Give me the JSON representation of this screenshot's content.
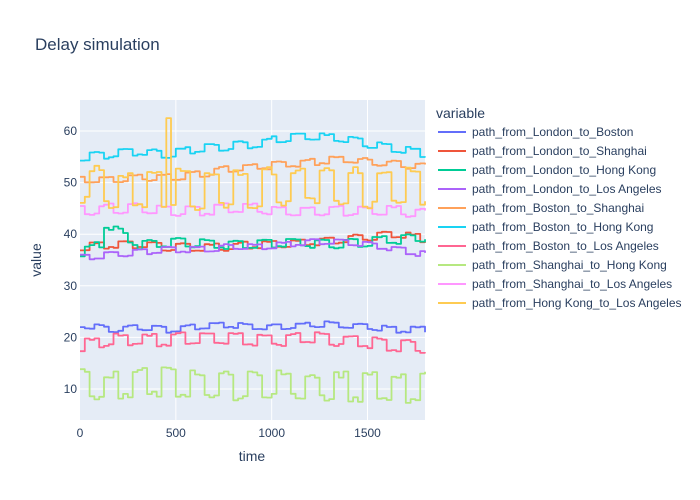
{
  "chart_data": {
    "type": "line",
    "title": "Delay simulation",
    "xlabel": "time",
    "ylabel": "value",
    "xlim": [
      0,
      1800
    ],
    "ylim": [
      4,
      66
    ],
    "x_ticks": [
      0,
      500,
      1000,
      1500
    ],
    "y_ticks": [
      10,
      20,
      30,
      40,
      50,
      60
    ],
    "legend_title": "variable",
    "legend_position": "right",
    "plot_background": "#e5ecf6",
    "grid": true,
    "series": [
      {
        "name": "path_from_London_to_Boston",
        "color": "#636efa",
        "x": [
          0,
          150,
          300,
          450,
          600,
          750,
          900,
          1050,
          1200,
          1350,
          1500,
          1650,
          1800
        ],
        "y": [
          22.5,
          21.5,
          22.0,
          21.5,
          22.0,
          22.5,
          22.0,
          22.0,
          22.5,
          22.5,
          22.0,
          21.5,
          21.5
        ],
        "band": 1.2
      },
      {
        "name": "path_from_London_to_Shanghai",
        "color": "#ef553b",
        "x": [
          0,
          150,
          300,
          450,
          600,
          750,
          900,
          1050,
          1200,
          1350,
          1500,
          1650,
          1800
        ],
        "y": [
          37.5,
          38.0,
          38.0,
          37.5,
          37.5,
          37.5,
          38.0,
          38.0,
          38.5,
          39.0,
          39.5,
          40.0,
          39.0
        ],
        "band": 1.5
      },
      {
        "name": "path_from_London_to_Hong Kong",
        "color": "#00cc96",
        "x": [
          0,
          100,
          120,
          300,
          500,
          700,
          900,
          1100,
          1300,
          1500,
          1650,
          1800
        ],
        "y": [
          36.5,
          38.0,
          42.0,
          38.0,
          38.5,
          38.0,
          38.0,
          38.5,
          38.0,
          38.5,
          39.0,
          39.5
        ],
        "band": 1.8
      },
      {
        "name": "path_from_London_to_Los Angeles",
        "color": "#ab63fa",
        "x": [
          0,
          150,
          300,
          450,
          600,
          750,
          900,
          1050,
          1200,
          1350,
          1500,
          1650,
          1800
        ],
        "y": [
          35.5,
          36.0,
          36.5,
          37.0,
          37.0,
          37.5,
          37.5,
          38.0,
          38.5,
          38.5,
          38.0,
          37.0,
          36.0
        ],
        "band": 1.2
      },
      {
        "name": "path_from_Boston_to_Shanghai",
        "color": "#ffa15a",
        "x": [
          0,
          150,
          300,
          450,
          600,
          750,
          900,
          1050,
          1200,
          1350,
          1500,
          1650,
          1800
        ],
        "y": [
          50.5,
          50.5,
          51.0,
          51.0,
          51.5,
          52.5,
          53.0,
          53.5,
          54.0,
          54.5,
          54.0,
          53.5,
          53.0
        ],
        "band": 1.4
      },
      {
        "name": "path_from_Boston_to_Hong Kong",
        "color": "#19d3f3",
        "x": [
          0,
          150,
          300,
          450,
          600,
          750,
          900,
          1050,
          1200,
          1350,
          1500,
          1650,
          1800
        ],
        "y": [
          55.0,
          55.5,
          56.0,
          55.5,
          56.5,
          57.0,
          57.5,
          58.5,
          59.0,
          58.5,
          57.5,
          56.5,
          55.5
        ],
        "band": 1.6
      },
      {
        "name": "path_from_Boston_to_Los Angeles",
        "color": "#ff6692",
        "x": [
          0,
          150,
          300,
          450,
          600,
          750,
          900,
          1050,
          1200,
          1350,
          1500,
          1650,
          1800
        ],
        "y": [
          18.5,
          19.5,
          19.5,
          19.5,
          20.0,
          20.0,
          19.5,
          19.5,
          20.0,
          19.5,
          19.0,
          18.5,
          18.0
        ],
        "band": 2.5
      },
      {
        "name": "path_from_Shanghai_to_Hong Kong",
        "color": "#b6e880",
        "x": [
          0,
          150,
          300,
          450,
          600,
          750,
          900,
          1050,
          1200,
          1350,
          1500,
          1650,
          1800
        ],
        "y": [
          11.0,
          10.5,
          11.0,
          11.5,
          11.0,
          10.5,
          10.5,
          11.0,
          10.5,
          10.5,
          10.5,
          10.0,
          10.5
        ],
        "band": 6.0
      },
      {
        "name": "path_from_Shanghai_to_Los Angeles",
        "color": "#ff97ff",
        "x": [
          0,
          150,
          300,
          450,
          600,
          750,
          900,
          1050,
          1200,
          1350,
          1500,
          1650,
          1800
        ],
        "y": [
          44.5,
          45.0,
          45.0,
          44.5,
          44.5,
          45.0,
          45.0,
          44.5,
          44.5,
          44.5,
          44.5,
          44.5,
          44.0
        ],
        "band": 2.0
      },
      {
        "name": "path_from_Hong Kong_to_Los Angeles",
        "color": "#fecb52",
        "x": [
          0,
          150,
          300,
          450,
          600,
          750,
          900,
          1050,
          1200,
          1350,
          1500,
          1650,
          1800
        ],
        "y": [
          50.0,
          48.5,
          48.5,
          49.0,
          48.5,
          49.0,
          49.0,
          49.0,
          49.5,
          49.5,
          49.0,
          49.0,
          49.0
        ],
        "band": 8.0,
        "spike_x": 445,
        "spike_y": 62.5
      }
    ]
  }
}
